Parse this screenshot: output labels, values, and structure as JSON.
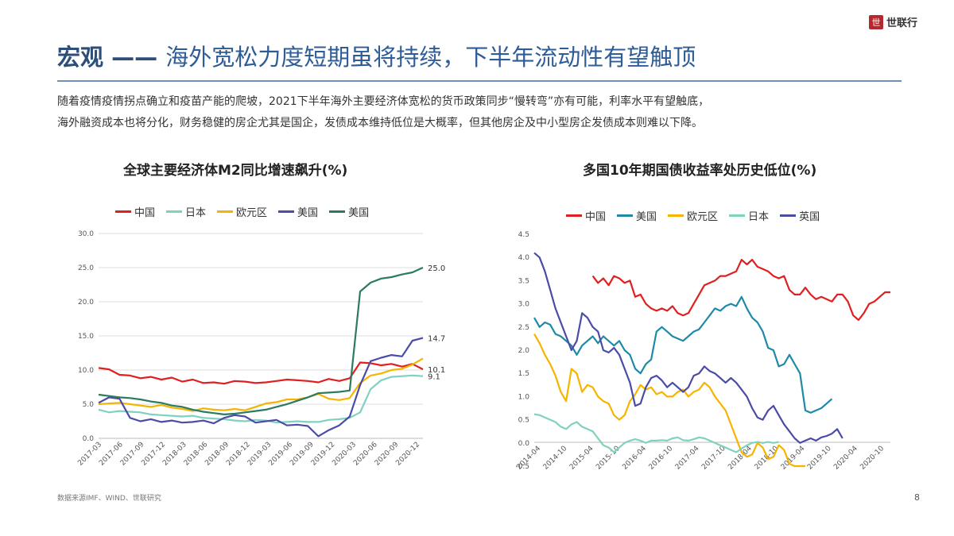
{
  "logo": {
    "mark": "世",
    "text": "世联行"
  },
  "title": {
    "prefix": "宏观 —— ",
    "rest": "海外宽松力度短期虽将持续，下半年流动性有望触顶"
  },
  "description": [
    "随着疫情疫情拐点确立和疫苗产能的爬坡，2021下半年海外主要经济体宽松的货币政策同步“慢转弯”亦有可能，利率水平有望触底，",
    "海外融资成本也将分化，财务稳健的房企尤其是国企，发债成本维持低位是大概率，但其他房企及中小型房企发债成本则难以下降。"
  ],
  "footer": {
    "source": "数据来源IMF、WIND、世联研究",
    "page": "8"
  },
  "chart_data": [
    {
      "type": "line",
      "title": "全球主要经济体M2同比增速飙升(%)",
      "xlabel": "",
      "ylabel": "",
      "ylim": [
        0,
        30
      ],
      "yticks": [
        "0.0",
        "5.0",
        "10.0",
        "15.0",
        "20.0",
        "25.0",
        "30.0"
      ],
      "xticks": [
        "2017-03",
        "2017-06",
        "2017-09",
        "2017-12",
        "2018-03",
        "2018-06",
        "2018-09",
        "2018-12",
        "2019-03",
        "2019-06",
        "2019-09",
        "2019-12",
        "2020-03",
        "2020-06",
        "2020-09",
        "2020-12"
      ],
      "grid": true,
      "legend": "top",
      "end_labels": [
        "25.0",
        "14.7",
        "10.1",
        "9.1"
      ],
      "series": [
        {
          "name": "中国",
          "color": "#e02020",
          "values": [
            10.3,
            10.1,
            9.3,
            9.2,
            8.8,
            9.0,
            8.6,
            8.9,
            8.3,
            8.6,
            8.1,
            8.2,
            8.0,
            8.4,
            8.3,
            8.1,
            8.2,
            8.4,
            8.6,
            8.5,
            8.4,
            8.2,
            8.7,
            8.4,
            8.8,
            11.1,
            11.0,
            10.7,
            10.9,
            10.5,
            10.9,
            10.1
          ]
        },
        {
          "name": "日本",
          "color": "#7fd1c0",
          "values": [
            4.2,
            3.8,
            4.0,
            3.9,
            3.8,
            3.5,
            3.4,
            3.3,
            3.2,
            3.3,
            3.0,
            2.9,
            2.8,
            2.6,
            2.5,
            2.7,
            2.6,
            2.3,
            2.4,
            2.5,
            2.4,
            2.4,
            2.7,
            2.8,
            3.0,
            3.8,
            7.2,
            8.5,
            9.0,
            9.1,
            9.2,
            9.1
          ]
        },
        {
          "name": "欧元区",
          "color": "#f6b400",
          "values": [
            5.0,
            5.1,
            5.2,
            5.0,
            4.8,
            4.6,
            4.9,
            4.5,
            4.3,
            4.0,
            4.4,
            4.2,
            4.1,
            4.3,
            4.1,
            4.6,
            5.1,
            5.3,
            5.7,
            5.7,
            6.0,
            6.5,
            5.8,
            5.6,
            5.9,
            8.1,
            9.2,
            9.5,
            10.0,
            10.2,
            10.8,
            11.7
          ]
        },
        {
          "name": "美国",
          "color": "#4b4ba8",
          "values": [
            5.2,
            6.0,
            5.8,
            3.0,
            2.5,
            2.8,
            2.4,
            2.6,
            2.3,
            2.4,
            2.6,
            2.2,
            3.0,
            3.4,
            3.2,
            2.3,
            2.5,
            2.7,
            1.9,
            2.0,
            1.8,
            0.3,
            1.2,
            1.9,
            3.2,
            7.8,
            11.3,
            11.8,
            12.2,
            12.0,
            14.3,
            14.7
          ]
        },
        {
          "name": "美国",
          "color": "#2d7a5e",
          "values": [
            6.4,
            6.2,
            6.0,
            5.9,
            5.7,
            5.4,
            5.2,
            4.8,
            4.6,
            4.2,
            3.9,
            3.7,
            3.5,
            3.6,
            3.8,
            4.0,
            4.2,
            4.6,
            5.0,
            5.5,
            6.0,
            6.6,
            6.7,
            6.8,
            7.0,
            21.5,
            22.8,
            23.4,
            23.6,
            24.0,
            24.3,
            25.0
          ]
        }
      ]
    },
    {
      "type": "line",
      "title": "多国10年期国债收益率处历史低位(%)",
      "xlabel": "",
      "ylabel": "",
      "ylim": [
        -0.5,
        4.5
      ],
      "yticks": [
        "-0.5",
        "0.0",
        "0.5",
        "1.0",
        "1.5",
        "2.0",
        "2.5",
        "3.0",
        "3.5",
        "4.0",
        "4.5"
      ],
      "xticks": [
        "2014-04",
        "2014-10",
        "2015-04",
        "2015-10",
        "2016-04",
        "2016-10",
        "2017-04",
        "2017-10",
        "2018-04",
        "2018-10",
        "2019-04",
        "2019-10",
        "2020-04",
        "2020-10"
      ],
      "grid": false,
      "legend": "top",
      "series": [
        {
          "name": "中国",
          "color": "#e02020",
          "start": 11,
          "values": [
            3.6,
            3.45,
            3.55,
            3.4,
            3.6,
            3.55,
            3.45,
            3.5,
            3.15,
            3.2,
            3.0,
            2.9,
            2.85,
            2.9,
            2.85,
            2.95,
            2.8,
            2.75,
            2.8,
            3.0,
            3.2,
            3.4,
            3.45,
            3.5,
            3.6,
            3.6,
            3.65,
            3.7,
            3.95,
            3.85,
            3.95,
            3.8,
            3.75,
            3.7,
            3.6,
            3.55,
            3.6,
            3.3,
            3.2,
            3.2,
            3.35,
            3.2,
            3.1,
            3.15,
            3.1,
            3.05,
            3.2,
            3.2,
            3.05,
            2.75,
            2.65,
            2.8,
            3.0,
            3.05,
            3.15,
            3.25,
            3.25
          ]
        },
        {
          "name": "美国",
          "color": "#1f8aa8",
          "values": [
            2.7,
            2.5,
            2.6,
            2.55,
            2.35,
            2.3,
            2.2,
            2.1,
            1.9,
            2.1,
            2.2,
            2.3,
            2.15,
            2.3,
            2.2,
            2.1,
            2.2,
            2.0,
            1.9,
            1.6,
            1.5,
            1.7,
            1.8,
            2.4,
            2.5,
            2.4,
            2.3,
            2.25,
            2.2,
            2.3,
            2.4,
            2.45,
            2.6,
            2.75,
            2.9,
            2.85,
            2.95,
            3.0,
            2.95,
            3.15,
            2.9,
            2.7,
            2.6,
            2.4,
            2.05,
            2.0,
            1.65,
            1.7,
            1.9,
            1.7,
            1.5,
            0.7,
            0.65,
            0.7,
            0.75,
            0.85,
            0.95
          ]
        },
        {
          "name": "欧元区",
          "color": "#f6b400",
          "values": [
            2.35,
            2.15,
            1.9,
            1.7,
            1.45,
            1.1,
            0.9,
            1.6,
            1.5,
            1.1,
            1.25,
            1.2,
            1.0,
            0.9,
            0.85,
            0.6,
            0.5,
            0.6,
            0.9,
            1.05,
            1.25,
            1.15,
            1.2,
            1.05,
            1.1,
            1.0,
            1.0,
            1.1,
            1.15,
            1.0,
            1.1,
            1.15,
            1.3,
            1.2,
            1.0,
            0.85,
            0.7,
            0.4,
            0.1,
            -0.2,
            -0.3,
            -0.25,
            0.0,
            -0.1,
            -0.35,
            -0.3,
            -0.05,
            -0.15,
            -0.45,
            -0.5,
            -0.5,
            -0.5
          ]
        },
        {
          "name": "日本",
          "color": "#7fd1c0",
          "values": [
            0.62,
            0.6,
            0.55,
            0.5,
            0.45,
            0.35,
            0.3,
            0.4,
            0.45,
            0.35,
            0.3,
            0.25,
            0.1,
            -0.05,
            -0.1,
            -0.2,
            -0.1,
            0.0,
            0.05,
            0.08,
            0.05,
            0.0,
            0.05,
            0.05,
            0.06,
            0.05,
            0.1,
            0.12,
            0.06,
            0.05,
            0.08,
            0.12,
            0.1,
            0.05,
            0.0,
            -0.05,
            -0.1,
            -0.15,
            -0.2,
            -0.12,
            -0.05,
            0.0,
            0.02,
            0.0,
            0.02,
            0.0,
            0.02
          ]
        },
        {
          "name": "英国",
          "color": "#4b4ba8",
          "values": [
            4.1,
            4.0,
            3.7,
            3.3,
            2.9,
            2.6,
            2.3,
            2.0,
            2.2,
            2.8,
            2.7,
            2.5,
            2.4,
            2.0,
            1.95,
            2.05,
            1.9,
            1.6,
            1.3,
            0.8,
            0.85,
            1.2,
            1.4,
            1.45,
            1.35,
            1.2,
            1.3,
            1.2,
            1.1,
            1.2,
            1.45,
            1.5,
            1.65,
            1.55,
            1.5,
            1.4,
            1.3,
            1.4,
            1.3,
            1.15,
            1.0,
            0.75,
            0.55,
            0.5,
            0.7,
            0.8,
            0.6,
            0.4,
            0.25,
            0.1,
            0.0,
            0.05,
            0.1,
            0.05,
            0.12,
            0.15,
            0.2,
            0.3,
            0.1
          ]
        }
      ]
    }
  ]
}
